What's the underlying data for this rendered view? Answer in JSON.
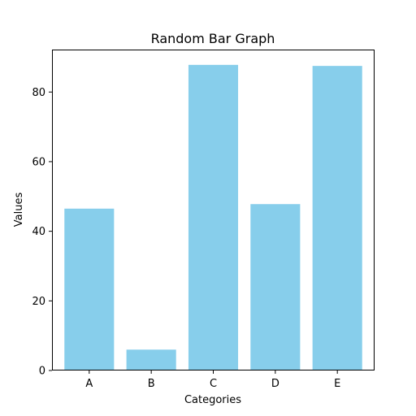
{
  "chart_data": {
    "type": "bar",
    "title": "Random Bar Graph",
    "xlabel": "Categories",
    "ylabel": "Values",
    "categories": [
      "A",
      "B",
      "C",
      "D",
      "E"
    ],
    "values": [
      46.5,
      6.0,
      87.8,
      47.8,
      87.5
    ],
    "ylim": [
      0,
      92.2
    ],
    "yticks": [
      0,
      20,
      40,
      60,
      80
    ],
    "grid": false,
    "bar_color": "#87CEEB",
    "axis_color": "#000000"
  }
}
